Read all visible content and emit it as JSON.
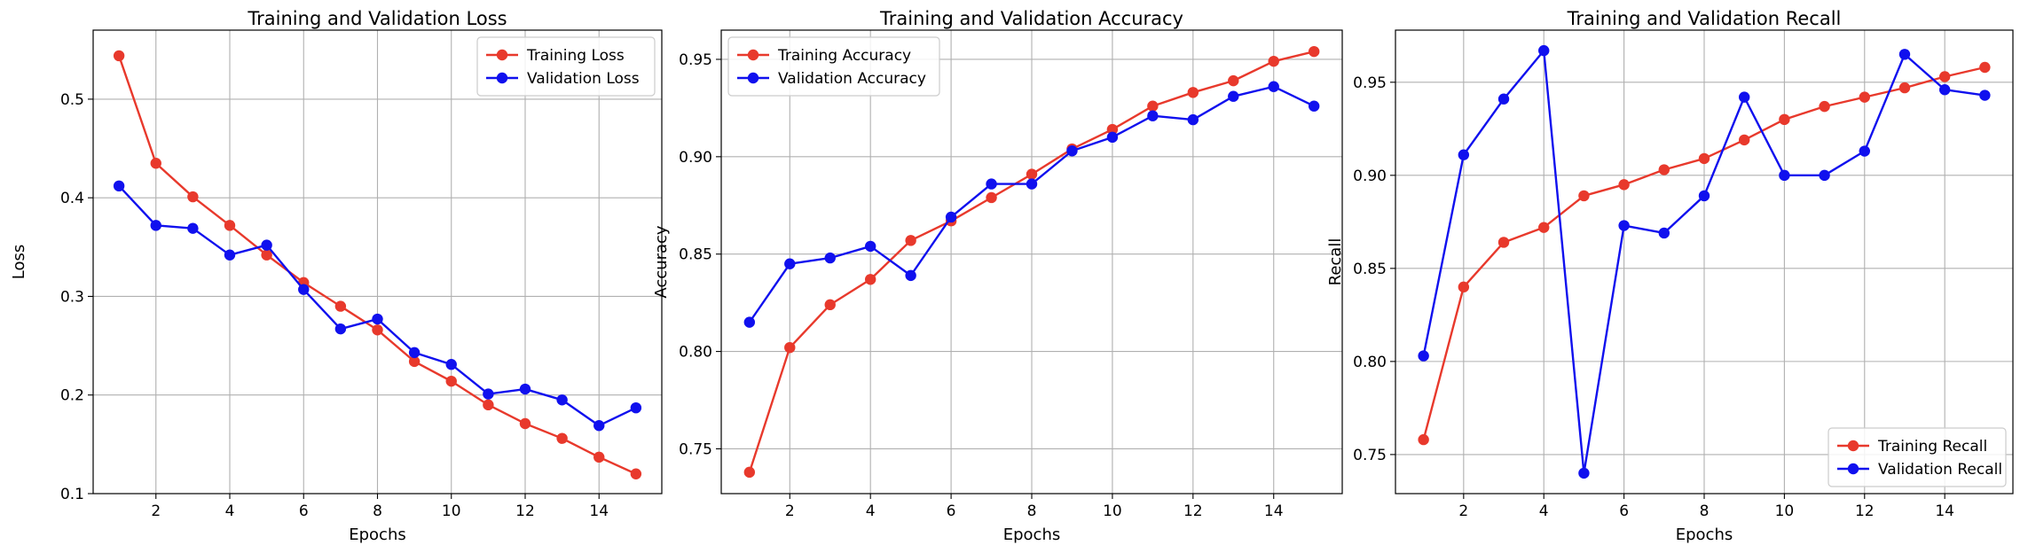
{
  "chart_data": [
    {
      "type": "line",
      "title": "Training and Validation Loss",
      "xlabel": "Epochs",
      "ylabel": "Loss",
      "xlim": [
        0.3,
        15.7
      ],
      "ylim": [
        0.1,
        0.57
      ],
      "xticks": [
        2,
        4,
        6,
        8,
        10,
        12,
        14
      ],
      "yticks": [
        0.1,
        0.2,
        0.3,
        0.4,
        0.5
      ],
      "ytick_labels": [
        "0.1",
        "0.2",
        "0.3",
        "0.4",
        "0.5"
      ],
      "grid": true,
      "legend_position": "top-right",
      "x": [
        1,
        2,
        3,
        4,
        5,
        6,
        7,
        8,
        9,
        10,
        11,
        12,
        13,
        14,
        15
      ],
      "series": [
        {
          "name": "Training Loss",
          "color": "#e8392c",
          "values": [
            0.544,
            0.435,
            0.401,
            0.372,
            0.342,
            0.314,
            0.29,
            0.266,
            0.234,
            0.214,
            0.19,
            0.171,
            0.156,
            0.137,
            0.12
          ]
        },
        {
          "name": "Validation Loss",
          "color": "#1010ee",
          "values": [
            0.412,
            0.372,
            0.369,
            0.342,
            0.352,
            0.307,
            0.267,
            0.277,
            0.243,
            0.231,
            0.201,
            0.206,
            0.195,
            0.169,
            0.187
          ]
        }
      ]
    },
    {
      "type": "line",
      "title": "Training and Validation Accuracy",
      "xlabel": "Epochs",
      "ylabel": "Accuracy",
      "xlim": [
        0.3,
        15.7
      ],
      "ylim": [
        0.727,
        0.965
      ],
      "xticks": [
        2,
        4,
        6,
        8,
        10,
        12,
        14
      ],
      "yticks": [
        0.75,
        0.8,
        0.85,
        0.9,
        0.95
      ],
      "ytick_labels": [
        "0.75",
        "0.80",
        "0.85",
        "0.90",
        "0.95"
      ],
      "grid": true,
      "legend_position": "top-left",
      "x": [
        1,
        2,
        3,
        4,
        5,
        6,
        7,
        8,
        9,
        10,
        11,
        12,
        13,
        14,
        15
      ],
      "series": [
        {
          "name": "Training Accuracy",
          "color": "#e8392c",
          "values": [
            0.738,
            0.802,
            0.824,
            0.837,
            0.857,
            0.867,
            0.879,
            0.891,
            0.904,
            0.914,
            0.926,
            0.933,
            0.939,
            0.949,
            0.954
          ]
        },
        {
          "name": "Validation Accuracy",
          "color": "#1010ee",
          "values": [
            0.815,
            0.845,
            0.848,
            0.854,
            0.839,
            0.869,
            0.886,
            0.886,
            0.903,
            0.91,
            0.921,
            0.919,
            0.931,
            0.936,
            0.926
          ]
        }
      ]
    },
    {
      "type": "line",
      "title": "Training and Validation Recall",
      "xlabel": "Epochs",
      "ylabel": "Recall",
      "xlim": [
        0.3,
        15.7
      ],
      "ylim": [
        0.729,
        0.978
      ],
      "xticks": [
        2,
        4,
        6,
        8,
        10,
        12,
        14
      ],
      "yticks": [
        0.75,
        0.8,
        0.85,
        0.9,
        0.95
      ],
      "ytick_labels": [
        "0.75",
        "0.80",
        "0.85",
        "0.90",
        "0.95"
      ],
      "grid": true,
      "legend_position": "bottom-right",
      "x": [
        1,
        2,
        3,
        4,
        5,
        6,
        7,
        8,
        9,
        10,
        11,
        12,
        13,
        14,
        15
      ],
      "series": [
        {
          "name": "Training Recall",
          "color": "#e8392c",
          "values": [
            0.758,
            0.84,
            0.864,
            0.872,
            0.889,
            0.895,
            0.903,
            0.909,
            0.919,
            0.93,
            0.937,
            0.942,
            0.947,
            0.953,
            0.958
          ]
        },
        {
          "name": "Validation Recall",
          "color": "#1010ee",
          "values": [
            0.803,
            0.911,
            0.941,
            0.967,
            0.74,
            0.873,
            0.869,
            0.889,
            0.942,
            0.9,
            0.9,
            0.913,
            0.965,
            0.946,
            0.943
          ]
        }
      ]
    }
  ]
}
